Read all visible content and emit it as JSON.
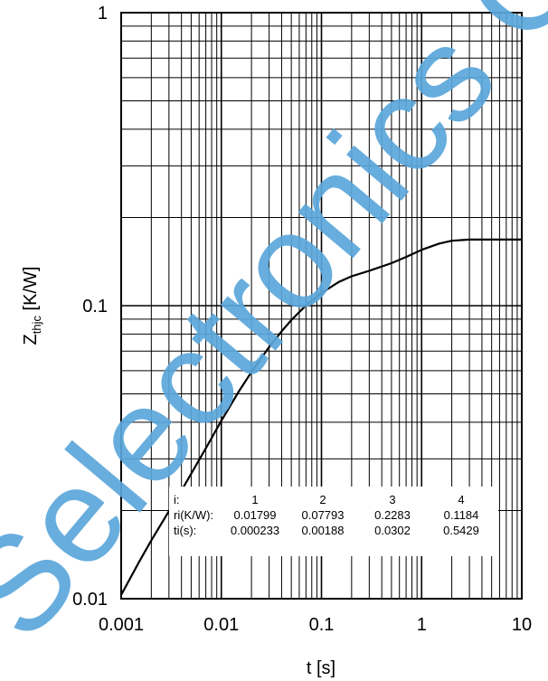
{
  "chart_data": {
    "type": "line",
    "xlabel": "t [s]",
    "ylabel_main": "Z",
    "ylabel_sub": "thjc",
    "ylabel_unit": " [K/W]",
    "xscale": "log",
    "yscale": "log",
    "xlim": [
      0.001,
      10
    ],
    "ylim": [
      0.01,
      1
    ],
    "grid": true,
    "x_ticks": [
      {
        "value": 0.001,
        "label": "0.001"
      },
      {
        "value": 0.01,
        "label": "0.01"
      },
      {
        "value": 0.1,
        "label": "0.1"
      },
      {
        "value": 1,
        "label": "1"
      },
      {
        "value": 10,
        "label": "10"
      }
    ],
    "y_ticks": [
      {
        "value": 0.01,
        "label": "0.01"
      },
      {
        "value": 0.1,
        "label": "0.1"
      },
      {
        "value": 1,
        "label": "1"
      }
    ],
    "thermal_table": {
      "rows": [
        [
          "i:",
          "1",
          "2",
          "3",
          "4"
        ],
        [
          "ri(K/W):",
          "0.01799",
          "0.07793",
          "0.2283",
          "0.1184"
        ],
        [
          "ti(s):",
          "0.000233",
          "0.00188",
          "0.0302",
          "0.5429"
        ]
      ]
    },
    "series": [
      {
        "x": [
          0.001,
          0.0015,
          0.002,
          0.003,
          0.004,
          0.005,
          0.007,
          0.01,
          0.015,
          0.02,
          0.03,
          0.04,
          0.05,
          0.07,
          0.1,
          0.15,
          0.2,
          0.3,
          0.5,
          0.7,
          1,
          1.5,
          2,
          3,
          5,
          7,
          10
        ],
        "y": [
          0.0103,
          0.0133,
          0.0158,
          0.0199,
          0.0234,
          0.0267,
          0.0326,
          0.0405,
          0.0511,
          0.0594,
          0.0722,
          0.0817,
          0.0893,
          0.1002,
          0.1105,
          0.1206,
          0.126,
          0.1316,
          0.1397,
          0.1467,
          0.1551,
          0.163,
          0.1666,
          0.1681,
          0.1681,
          0.1681,
          0.1681
        ]
      }
    ]
  },
  "watermark": {
    "text": "Selectronics Co. LTD",
    "color": "#5aa6da"
  }
}
